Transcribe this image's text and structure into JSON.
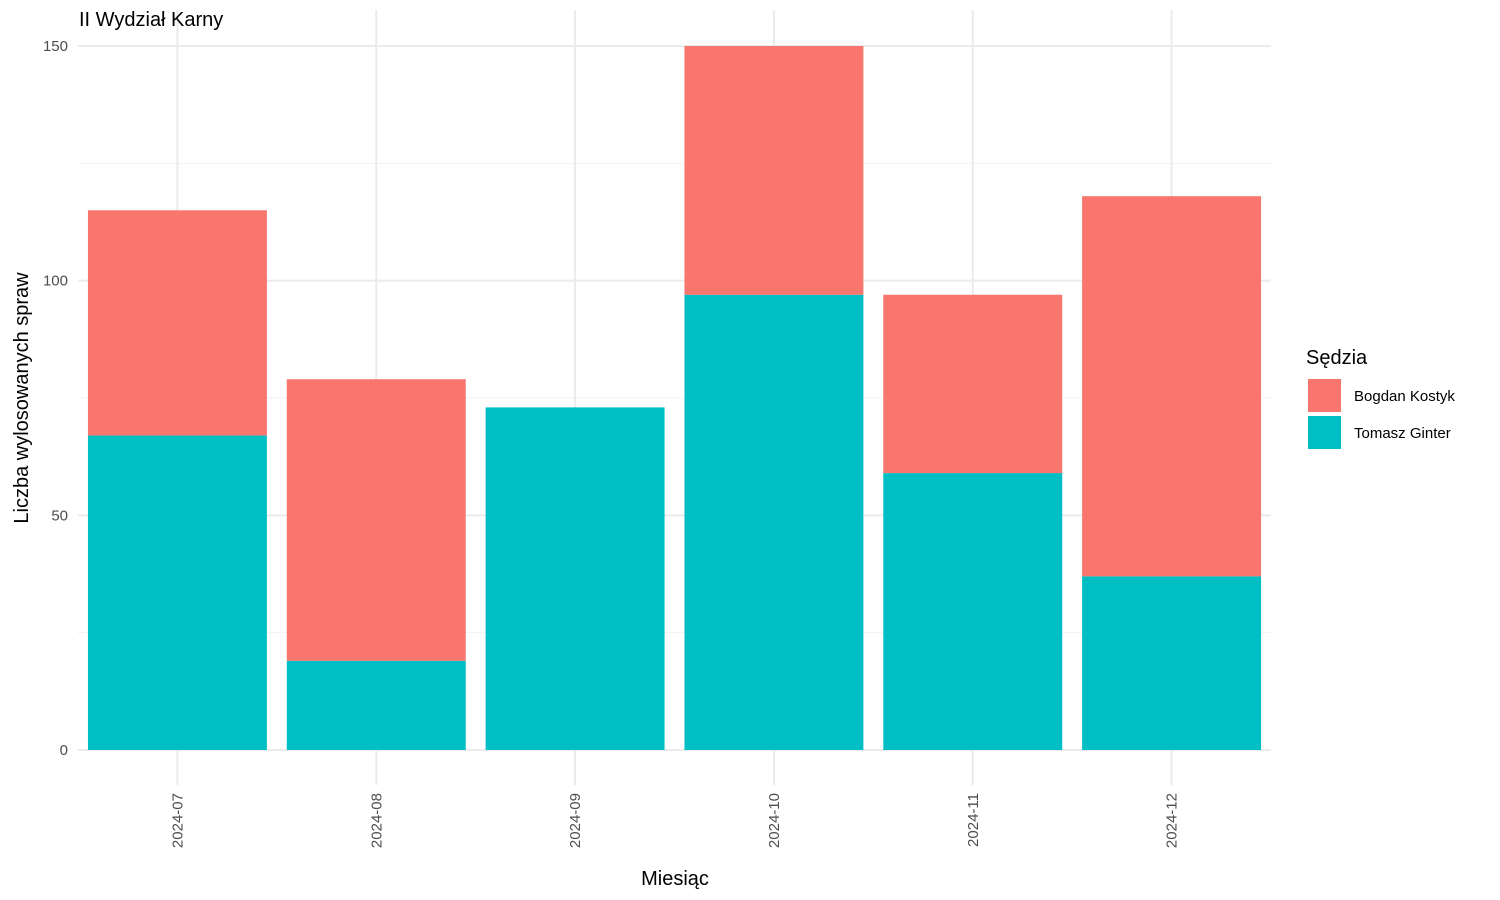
{
  "chart_data": {
    "type": "bar",
    "stacked": true,
    "title": "II Wydział Karny",
    "xlabel": "Miesiąc",
    "ylabel": "Liczba wylosowanych spraw",
    "categories": [
      "2024-07",
      "2024-08",
      "2024-09",
      "2024-10",
      "2024-11",
      "2024-12"
    ],
    "series": [
      {
        "name": "Tomasz Ginter",
        "color": "#00BFC4",
        "values": [
          67,
          19,
          73,
          97,
          59,
          37
        ]
      },
      {
        "name": "Bogdan Kostyk",
        "color": "#F8766D",
        "values": [
          48,
          60,
          0,
          53,
          38,
          81
        ]
      }
    ],
    "ylim": [
      0,
      150
    ],
    "yticks": [
      0,
      50,
      100,
      150
    ],
    "legend": {
      "title": "Sędzia",
      "position": "right",
      "order": [
        "Bogdan Kostyk",
        "Tomasz Ginter"
      ]
    },
    "grid": true
  }
}
